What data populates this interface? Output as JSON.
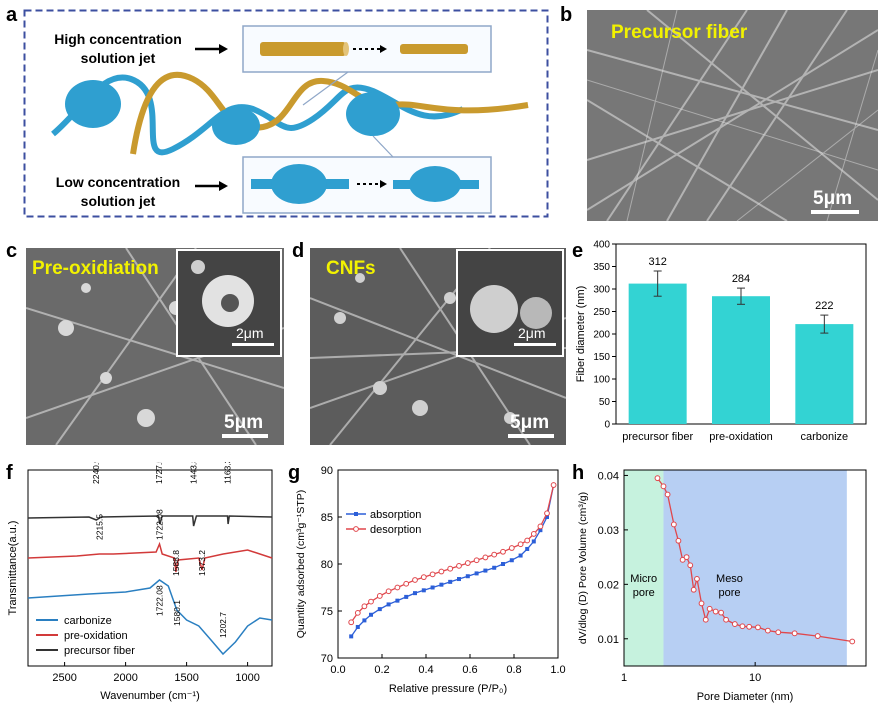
{
  "panel_labels": {
    "a": "a",
    "b": "b",
    "c": "c",
    "d": "d",
    "e": "e",
    "f": "f",
    "g": "g",
    "h": "h"
  },
  "panel_a": {
    "high_label_line1": "High concentration",
    "high_label_line2": "solution jet",
    "low_label_line1": "Low concentration",
    "low_label_line2": "solution jet",
    "colors": {
      "fiber": "#c99a2e",
      "bead": "#2f9fd0",
      "frame": "#3c4fa0"
    }
  },
  "panel_b": {
    "label": "Precursor fiber",
    "scale": "5μm"
  },
  "panel_c": {
    "label": "Pre-oxidiation",
    "scale": "5μm",
    "inset_scale": "2μm"
  },
  "panel_d": {
    "label": "CNFs",
    "scale": "5μm",
    "inset_scale": "2μm"
  },
  "chart_data": [
    {
      "panel": "e",
      "type": "bar",
      "categories": [
        "precursor fiber",
        "pre-oxidation",
        "carbonize"
      ],
      "values": [
        312,
        284,
        222
      ],
      "errors": [
        28,
        18,
        20
      ],
      "ylabel": "Fiber diameter (nm)",
      "ylim": [
        0,
        400
      ],
      "yticks": [
        0,
        50,
        100,
        150,
        200,
        250,
        300,
        350,
        400
      ],
      "color": "#33d3d3"
    },
    {
      "panel": "f",
      "type": "line",
      "xlabel": "Wavenumber (cm⁻¹)",
      "ylabel": "Transmittance(a.u.)",
      "xlim": [
        2800,
        800
      ],
      "xticks": [
        2500,
        2000,
        1500,
        1000
      ],
      "series": [
        {
          "name": "precursor fiber",
          "color": "#333333",
          "annotations": [
            "2240.9",
            "1727.5",
            "1443.8",
            "1163.3"
          ]
        },
        {
          "name": "pre-oxidation",
          "color": "#d23a3a",
          "annotations": [
            "2215.5",
            "1722.08",
            "1588.8",
            "1373.2"
          ]
        },
        {
          "name": "carbonize",
          "color": "#2a7fc1",
          "annotations": [
            "1722.08",
            "1580.1",
            "1202.7"
          ]
        }
      ]
    },
    {
      "panel": "g",
      "type": "line",
      "xlabel": "Relative pressure (P/P₀)",
      "ylabel": "Quantity adsorbed (cm³g⁻¹STP)",
      "xlim": [
        0.0,
        1.0
      ],
      "ylim": [
        70,
        90
      ],
      "xticks": [
        0.0,
        0.2,
        0.4,
        0.6,
        0.8,
        1.0
      ],
      "yticks": [
        70,
        75,
        80,
        85,
        90
      ],
      "series": [
        {
          "name": "absorption",
          "color": "#2c5fd8",
          "x": [
            0.06,
            0.09,
            0.12,
            0.15,
            0.19,
            0.23,
            0.27,
            0.31,
            0.35,
            0.39,
            0.43,
            0.47,
            0.51,
            0.55,
            0.59,
            0.63,
            0.67,
            0.71,
            0.75,
            0.79,
            0.83,
            0.86,
            0.89,
            0.92,
            0.95,
            0.98
          ],
          "y": [
            72.3,
            73.3,
            74.0,
            74.6,
            75.2,
            75.7,
            76.1,
            76.5,
            76.9,
            77.2,
            77.5,
            77.8,
            78.1,
            78.4,
            78.7,
            79.0,
            79.3,
            79.6,
            80.0,
            80.4,
            80.9,
            81.6,
            82.4,
            83.6,
            85.0,
            88.4
          ]
        },
        {
          "name": "desorption",
          "color": "#e0474c",
          "x": [
            0.06,
            0.09,
            0.12,
            0.15,
            0.19,
            0.23,
            0.27,
            0.31,
            0.35,
            0.39,
            0.43,
            0.47,
            0.51,
            0.55,
            0.59,
            0.63,
            0.67,
            0.71,
            0.75,
            0.79,
            0.83,
            0.86,
            0.89,
            0.92,
            0.95,
            0.98
          ],
          "y": [
            73.8,
            74.8,
            75.5,
            76.0,
            76.6,
            77.1,
            77.5,
            77.9,
            78.3,
            78.6,
            78.9,
            79.2,
            79.5,
            79.8,
            80.1,
            80.4,
            80.7,
            81.0,
            81.3,
            81.7,
            82.1,
            82.5,
            83.2,
            84.0,
            85.4,
            88.4
          ]
        }
      ]
    },
    {
      "panel": "h",
      "type": "line",
      "xlabel": "Pore Diameter (nm)",
      "ylabel": "dV/dlog (D) Pore Volume (cm³/g)",
      "xscale": "log",
      "xlim": [
        1,
        70
      ],
      "ylim": [
        0.005,
        0.041
      ],
      "xticks": [
        1,
        10
      ],
      "yticks": [
        0.01,
        0.02,
        0.03,
        0.04
      ],
      "regions": [
        {
          "label_line1": "Micro",
          "label_line2": "pore",
          "from": 1.0,
          "to": 2.0,
          "color": "#c6f2de"
        },
        {
          "label_line1": "Meso",
          "label_line2": "pore",
          "from": 2.0,
          "to": 50,
          "color": "#b7cff3"
        }
      ],
      "series": [
        {
          "name": "pore",
          "color": "#e0474c",
          "x": [
            1.8,
            2.0,
            2.15,
            2.4,
            2.6,
            2.8,
            3.0,
            3.2,
            3.4,
            3.6,
            3.9,
            4.2,
            4.5,
            5.0,
            5.5,
            6.0,
            7.0,
            8.0,
            9.0,
            10.5,
            12.5,
            15,
            20,
            30,
            55
          ],
          "y": [
            0.0395,
            0.038,
            0.0365,
            0.031,
            0.028,
            0.0245,
            0.025,
            0.0235,
            0.019,
            0.021,
            0.0165,
            0.0135,
            0.0155,
            0.015,
            0.0148,
            0.0135,
            0.0127,
            0.0123,
            0.0122,
            0.0121,
            0.0115,
            0.0112,
            0.011,
            0.0105,
            0.0095
          ]
        }
      ]
    }
  ]
}
